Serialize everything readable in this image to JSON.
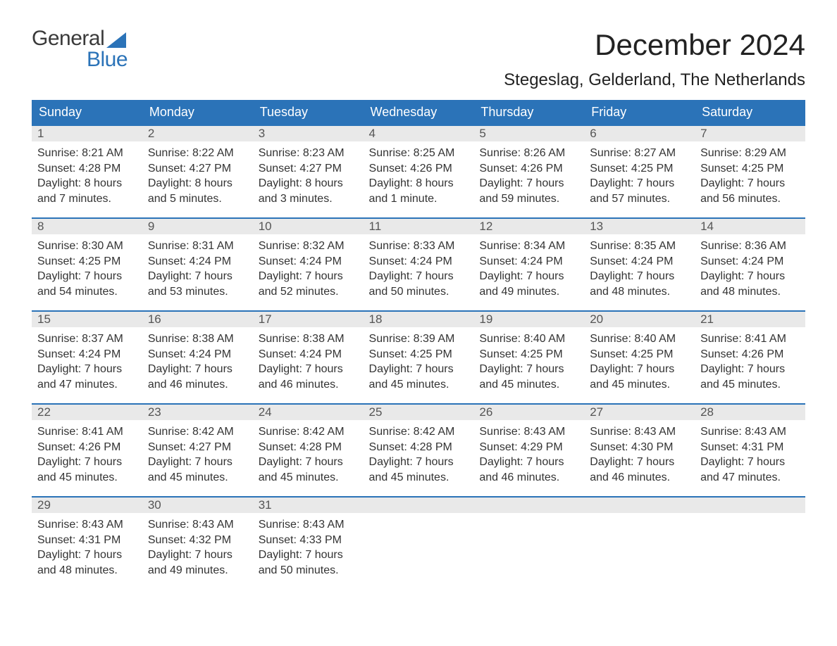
{
  "logo": {
    "word1": "General",
    "word2": "Blue"
  },
  "title": "December 2024",
  "location": "Stegeslag, Gelderland, The Netherlands",
  "colors": {
    "header_bg": "#2b73b8",
    "header_text": "#ffffff",
    "daynum_bg": "#e9e9e9",
    "text": "#333333",
    "logo_gray": "#3a3a3a",
    "logo_blue": "#2b73b8",
    "page_bg": "#ffffff"
  },
  "typography": {
    "title_fontsize": 42,
    "location_fontsize": 24,
    "weekday_fontsize": 18,
    "daynum_fontsize": 17,
    "body_fontsize": 16
  },
  "weekdays": [
    "Sunday",
    "Monday",
    "Tuesday",
    "Wednesday",
    "Thursday",
    "Friday",
    "Saturday"
  ],
  "weeks": [
    [
      {
        "n": "1",
        "sunrise": "Sunrise: 8:21 AM",
        "sunset": "Sunset: 4:28 PM",
        "d1": "Daylight: 8 hours",
        "d2": "and 7 minutes."
      },
      {
        "n": "2",
        "sunrise": "Sunrise: 8:22 AM",
        "sunset": "Sunset: 4:27 PM",
        "d1": "Daylight: 8 hours",
        "d2": "and 5 minutes."
      },
      {
        "n": "3",
        "sunrise": "Sunrise: 8:23 AM",
        "sunset": "Sunset: 4:27 PM",
        "d1": "Daylight: 8 hours",
        "d2": "and 3 minutes."
      },
      {
        "n": "4",
        "sunrise": "Sunrise: 8:25 AM",
        "sunset": "Sunset: 4:26 PM",
        "d1": "Daylight: 8 hours",
        "d2": "and 1 minute."
      },
      {
        "n": "5",
        "sunrise": "Sunrise: 8:26 AM",
        "sunset": "Sunset: 4:26 PM",
        "d1": "Daylight: 7 hours",
        "d2": "and 59 minutes."
      },
      {
        "n": "6",
        "sunrise": "Sunrise: 8:27 AM",
        "sunset": "Sunset: 4:25 PM",
        "d1": "Daylight: 7 hours",
        "d2": "and 57 minutes."
      },
      {
        "n": "7",
        "sunrise": "Sunrise: 8:29 AM",
        "sunset": "Sunset: 4:25 PM",
        "d1": "Daylight: 7 hours",
        "d2": "and 56 minutes."
      }
    ],
    [
      {
        "n": "8",
        "sunrise": "Sunrise: 8:30 AM",
        "sunset": "Sunset: 4:25 PM",
        "d1": "Daylight: 7 hours",
        "d2": "and 54 minutes."
      },
      {
        "n": "9",
        "sunrise": "Sunrise: 8:31 AM",
        "sunset": "Sunset: 4:24 PM",
        "d1": "Daylight: 7 hours",
        "d2": "and 53 minutes."
      },
      {
        "n": "10",
        "sunrise": "Sunrise: 8:32 AM",
        "sunset": "Sunset: 4:24 PM",
        "d1": "Daylight: 7 hours",
        "d2": "and 52 minutes."
      },
      {
        "n": "11",
        "sunrise": "Sunrise: 8:33 AM",
        "sunset": "Sunset: 4:24 PM",
        "d1": "Daylight: 7 hours",
        "d2": "and 50 minutes."
      },
      {
        "n": "12",
        "sunrise": "Sunrise: 8:34 AM",
        "sunset": "Sunset: 4:24 PM",
        "d1": "Daylight: 7 hours",
        "d2": "and 49 minutes."
      },
      {
        "n": "13",
        "sunrise": "Sunrise: 8:35 AM",
        "sunset": "Sunset: 4:24 PM",
        "d1": "Daylight: 7 hours",
        "d2": "and 48 minutes."
      },
      {
        "n": "14",
        "sunrise": "Sunrise: 8:36 AM",
        "sunset": "Sunset: 4:24 PM",
        "d1": "Daylight: 7 hours",
        "d2": "and 48 minutes."
      }
    ],
    [
      {
        "n": "15",
        "sunrise": "Sunrise: 8:37 AM",
        "sunset": "Sunset: 4:24 PM",
        "d1": "Daylight: 7 hours",
        "d2": "and 47 minutes."
      },
      {
        "n": "16",
        "sunrise": "Sunrise: 8:38 AM",
        "sunset": "Sunset: 4:24 PM",
        "d1": "Daylight: 7 hours",
        "d2": "and 46 minutes."
      },
      {
        "n": "17",
        "sunrise": "Sunrise: 8:38 AM",
        "sunset": "Sunset: 4:24 PM",
        "d1": "Daylight: 7 hours",
        "d2": "and 46 minutes."
      },
      {
        "n": "18",
        "sunrise": "Sunrise: 8:39 AM",
        "sunset": "Sunset: 4:25 PM",
        "d1": "Daylight: 7 hours",
        "d2": "and 45 minutes."
      },
      {
        "n": "19",
        "sunrise": "Sunrise: 8:40 AM",
        "sunset": "Sunset: 4:25 PM",
        "d1": "Daylight: 7 hours",
        "d2": "and 45 minutes."
      },
      {
        "n": "20",
        "sunrise": "Sunrise: 8:40 AM",
        "sunset": "Sunset: 4:25 PM",
        "d1": "Daylight: 7 hours",
        "d2": "and 45 minutes."
      },
      {
        "n": "21",
        "sunrise": "Sunrise: 8:41 AM",
        "sunset": "Sunset: 4:26 PM",
        "d1": "Daylight: 7 hours",
        "d2": "and 45 minutes."
      }
    ],
    [
      {
        "n": "22",
        "sunrise": "Sunrise: 8:41 AM",
        "sunset": "Sunset: 4:26 PM",
        "d1": "Daylight: 7 hours",
        "d2": "and 45 minutes."
      },
      {
        "n": "23",
        "sunrise": "Sunrise: 8:42 AM",
        "sunset": "Sunset: 4:27 PM",
        "d1": "Daylight: 7 hours",
        "d2": "and 45 minutes."
      },
      {
        "n": "24",
        "sunrise": "Sunrise: 8:42 AM",
        "sunset": "Sunset: 4:28 PM",
        "d1": "Daylight: 7 hours",
        "d2": "and 45 minutes."
      },
      {
        "n": "25",
        "sunrise": "Sunrise: 8:42 AM",
        "sunset": "Sunset: 4:28 PM",
        "d1": "Daylight: 7 hours",
        "d2": "and 45 minutes."
      },
      {
        "n": "26",
        "sunrise": "Sunrise: 8:43 AM",
        "sunset": "Sunset: 4:29 PM",
        "d1": "Daylight: 7 hours",
        "d2": "and 46 minutes."
      },
      {
        "n": "27",
        "sunrise": "Sunrise: 8:43 AM",
        "sunset": "Sunset: 4:30 PM",
        "d1": "Daylight: 7 hours",
        "d2": "and 46 minutes."
      },
      {
        "n": "28",
        "sunrise": "Sunrise: 8:43 AM",
        "sunset": "Sunset: 4:31 PM",
        "d1": "Daylight: 7 hours",
        "d2": "and 47 minutes."
      }
    ],
    [
      {
        "n": "29",
        "sunrise": "Sunrise: 8:43 AM",
        "sunset": "Sunset: 4:31 PM",
        "d1": "Daylight: 7 hours",
        "d2": "and 48 minutes."
      },
      {
        "n": "30",
        "sunrise": "Sunrise: 8:43 AM",
        "sunset": "Sunset: 4:32 PM",
        "d1": "Daylight: 7 hours",
        "d2": "and 49 minutes."
      },
      {
        "n": "31",
        "sunrise": "Sunrise: 8:43 AM",
        "sunset": "Sunset: 4:33 PM",
        "d1": "Daylight: 7 hours",
        "d2": "and 50 minutes."
      },
      null,
      null,
      null,
      null
    ]
  ]
}
